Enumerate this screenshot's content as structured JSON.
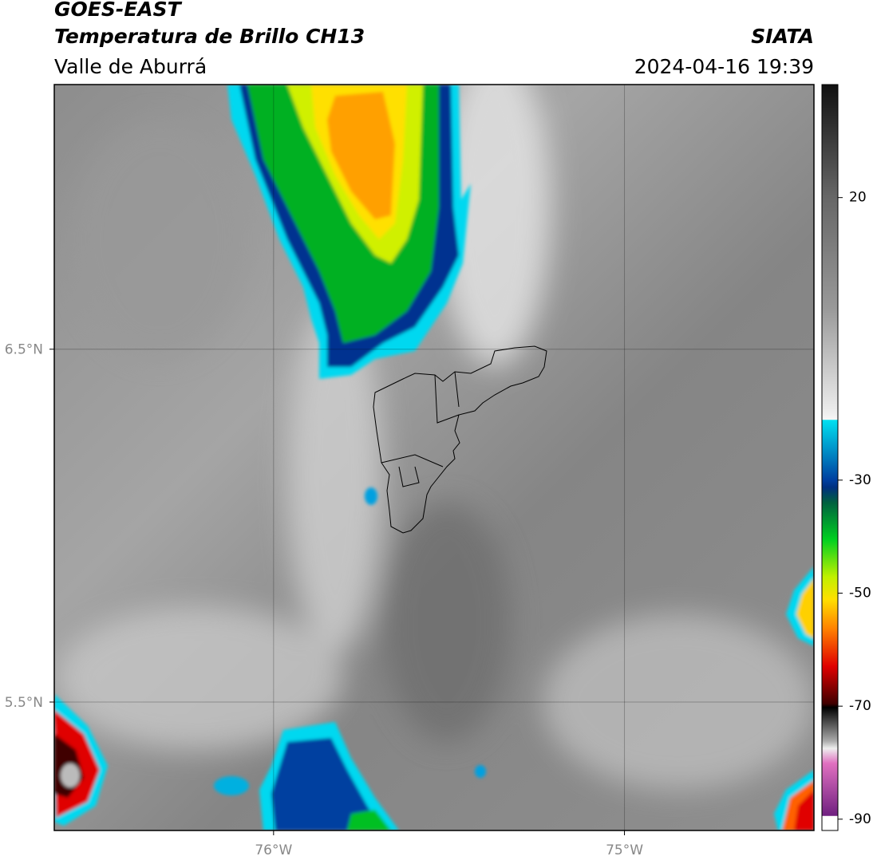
{
  "header": {
    "title": "GOES-EAST",
    "subtitle": "Temperatura de Brillo CH13",
    "region": "Valle de Aburrá",
    "source": "SIATA",
    "datetime": "2024-04-16 19:39"
  },
  "map": {
    "xlim": [
      -76.625,
      -74.46
    ],
    "ylim": [
      5.136,
      7.25
    ],
    "xticks": [
      {
        "value": -76,
        "label": "76°W"
      },
      {
        "value": -75,
        "label": "75°W"
      }
    ],
    "yticks": [
      {
        "value": 6.5,
        "label": "6.5°N"
      },
      {
        "value": 5.5,
        "label": "5.5°N"
      }
    ]
  },
  "colorbar": {
    "lim": [
      -92,
      40
    ],
    "ticks": [
      20,
      -30,
      -50,
      -70,
      -90
    ]
  }
}
